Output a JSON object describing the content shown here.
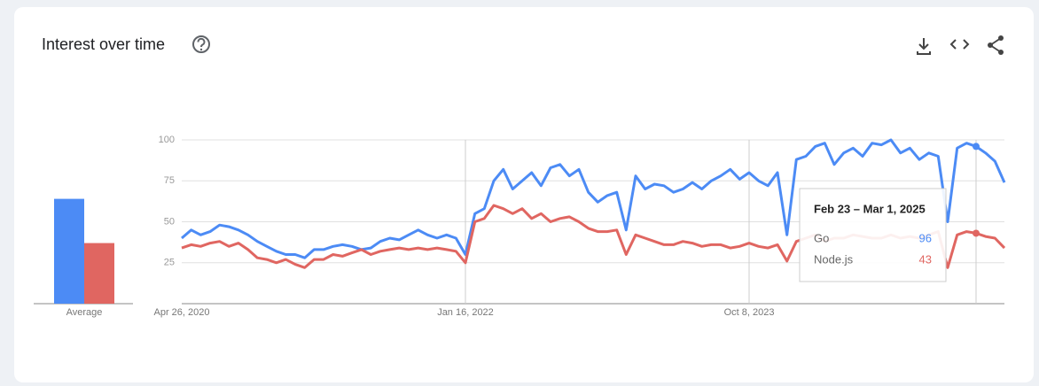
{
  "header": {
    "title": "Interest over time"
  },
  "chart_data": {
    "type": "line",
    "categories": [
      "Apr 26, 2020",
      null,
      null,
      null,
      null,
      null,
      null,
      null,
      null,
      null,
      null,
      null,
      null,
      null,
      null,
      null,
      null,
      null,
      null,
      null,
      null,
      null,
      null,
      null,
      null,
      null,
      null,
      null,
      null,
      null,
      "Jan 16, 2022",
      null,
      null,
      null,
      null,
      null,
      null,
      null,
      null,
      null,
      null,
      null,
      null,
      null,
      null,
      null,
      null,
      null,
      null,
      null,
      null,
      null,
      null,
      null,
      null,
      null,
      null,
      null,
      null,
      null,
      "Oct 8, 2023",
      null,
      null,
      null,
      null,
      null,
      null,
      null,
      null,
      null,
      null,
      null,
      null,
      null,
      null,
      null,
      null,
      null,
      null,
      null,
      null,
      null,
      null,
      null,
      null,
      null,
      null,
      null
    ],
    "series": [
      {
        "name": "Go",
        "color": "#4c8bf5",
        "values": [
          40,
          45,
          42,
          44,
          48,
          47,
          45,
          42,
          38,
          35,
          32,
          30,
          30,
          28,
          33,
          33,
          35,
          36,
          35,
          33,
          34,
          38,
          40,
          39,
          42,
          45,
          42,
          40,
          42,
          40,
          30,
          55,
          58,
          75,
          82,
          70,
          75,
          80,
          72,
          83,
          85,
          78,
          82,
          68,
          62,
          66,
          68,
          45,
          78,
          70,
          73,
          72,
          68,
          70,
          74,
          70,
          75,
          78,
          82,
          76,
          80,
          75,
          72,
          80,
          42,
          88,
          90,
          96,
          98,
          85,
          92,
          95,
          90,
          98,
          97,
          100,
          92,
          95,
          88,
          92,
          90,
          50,
          95,
          98,
          96,
          92,
          87,
          74
        ]
      },
      {
        "name": "Node.js",
        "color": "#e06661",
        "values": [
          34,
          36,
          35,
          37,
          38,
          35,
          37,
          33,
          28,
          27,
          25,
          27,
          24,
          22,
          27,
          27,
          30,
          29,
          31,
          33,
          30,
          32,
          33,
          34,
          33,
          34,
          33,
          34,
          33,
          32,
          25,
          50,
          52,
          60,
          58,
          55,
          58,
          52,
          55,
          50,
          52,
          53,
          50,
          46,
          44,
          44,
          45,
          30,
          42,
          40,
          38,
          36,
          36,
          38,
          37,
          35,
          36,
          36,
          34,
          35,
          37,
          35,
          34,
          36,
          26,
          38,
          40,
          42,
          38,
          40,
          40,
          42,
          41,
          40,
          40,
          42,
          40,
          41,
          40,
          42,
          44,
          22,
          42,
          44,
          43,
          41,
          40,
          34
        ]
      }
    ],
    "ylim": [
      0,
      100
    ],
    "yticks": [
      25,
      50,
      75,
      100
    ],
    "grid": true,
    "averages": {
      "label": "Average",
      "values": [
        64,
        37
      ]
    },
    "tooltip": {
      "title": "Feb 23 – Mar 1, 2025"
    }
  }
}
